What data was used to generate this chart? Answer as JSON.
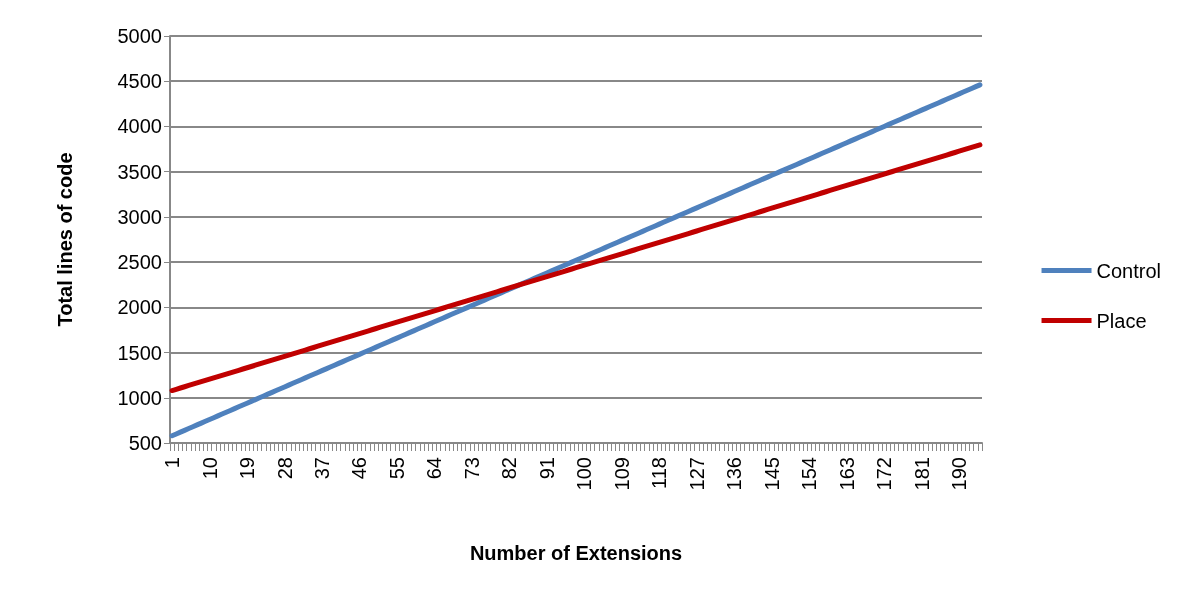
{
  "chart_data": {
    "type": "line",
    "xlabel": "Number of Extensions",
    "ylabel": "Total lines of code",
    "categories": [
      "1",
      null,
      null,
      null,
      null,
      null,
      null,
      null,
      null,
      "10",
      null,
      null,
      null,
      null,
      null,
      null,
      null,
      null,
      "19",
      null,
      null,
      null,
      null,
      null,
      null,
      null,
      null,
      "28",
      null,
      null,
      null,
      null,
      null,
      null,
      null,
      null,
      "37",
      null,
      null,
      null,
      null,
      null,
      null,
      null,
      null,
      "46",
      null,
      null,
      null,
      null,
      null,
      null,
      null,
      null,
      "55",
      null,
      null,
      null,
      null,
      null,
      null,
      null,
      null,
      "64",
      null,
      null,
      null,
      null,
      null,
      null,
      null,
      null,
      "73",
      null,
      null,
      null,
      null,
      null,
      null,
      null,
      null,
      "82",
      null,
      null,
      null,
      null,
      null,
      null,
      null,
      null,
      "91",
      null,
      null,
      null,
      null,
      null,
      null,
      null,
      null,
      "100",
      null,
      null,
      null,
      null,
      null,
      null,
      null,
      null,
      "109",
      null,
      null,
      null,
      null,
      null,
      null,
      null,
      null,
      "118",
      null,
      null,
      null,
      null,
      null,
      null,
      null,
      null,
      "127",
      null,
      null,
      null,
      null,
      null,
      null,
      null,
      null,
      "136",
      null,
      null,
      null,
      null,
      null,
      null,
      null,
      null,
      "145",
      null,
      null,
      null,
      null,
      null,
      null,
      null,
      null,
      "154",
      null,
      null,
      null,
      null,
      null,
      null,
      null,
      null,
      "163",
      null,
      null,
      null,
      null,
      null,
      null,
      null,
      null,
      "172",
      null,
      null,
      null,
      null,
      null,
      null,
      null,
      null,
      "181",
      null,
      null,
      null,
      null,
      null,
      null,
      null,
      null,
      "190",
      null,
      null,
      null,
      null,
      null
    ],
    "series": [
      {
        "name": "Control",
        "color": "#4f81bd",
        "values": [
          580,
          600,
          620,
          640,
          660,
          680,
          700,
          720,
          740,
          760,
          780,
          800,
          820,
          840,
          860,
          880,
          900,
          920,
          940,
          960,
          980,
          1000,
          1020,
          1040,
          1060,
          1080,
          1100,
          1120,
          1140,
          1160,
          1180,
          1200,
          1220,
          1240,
          1260,
          1280,
          1300,
          1320,
          1340,
          1360,
          1380,
          1400,
          1420,
          1440,
          1460,
          1480,
          1500,
          1520,
          1540,
          1560,
          1580,
          1600,
          1620,
          1640,
          1660,
          1680,
          1700,
          1720,
          1740,
          1760,
          1780,
          1800,
          1820,
          1840,
          1860,
          1880,
          1900,
          1920,
          1940,
          1960,
          1980,
          2000,
          2020,
          2040,
          2060,
          2080,
          2100,
          2120,
          2140,
          2160,
          2180,
          2200,
          2220,
          2240,
          2260,
          2280,
          2300,
          2320,
          2340,
          2360,
          2380,
          2400,
          2420,
          2440,
          2460,
          2480,
          2500,
          2520,
          2540,
          2560,
          2580,
          2600,
          2620,
          2640,
          2660,
          2680,
          2700,
          2720,
          2740,
          2760,
          2780,
          2800,
          2820,
          2840,
          2860,
          2880,
          2900,
          2920,
          2940,
          2960,
          2980,
          3000,
          3020,
          3040,
          3060,
          3080,
          3100,
          3120,
          3140,
          3160,
          3180,
          3200,
          3220,
          3240,
          3260,
          3280,
          3300,
          3320,
          3340,
          3360,
          3380,
          3400,
          3420,
          3440,
          3460,
          3480,
          3500,
          3520,
          3540,
          3560,
          3580,
          3600,
          3620,
          3640,
          3660,
          3680,
          3700,
          3720,
          3740,
          3760,
          3780,
          3800,
          3820,
          3840,
          3860,
          3880,
          3900,
          3920,
          3940,
          3960,
          3980,
          4000,
          4020,
          4040,
          4060,
          4080,
          4100,
          4120,
          4140,
          4160,
          4180,
          4200,
          4220,
          4240,
          4260,
          4280,
          4300,
          4320,
          4340,
          4360,
          4380,
          4400,
          4420,
          4440,
          4460
        ]
      },
      {
        "name": "Place",
        "color": "#c00000",
        "values": [
          1080,
          1094,
          1108,
          1122,
          1136,
          1150,
          1164,
          1178,
          1192,
          1206,
          1220,
          1234,
          1248,
          1262,
          1276,
          1290,
          1304,
          1318,
          1332,
          1346,
          1360,
          1374,
          1388,
          1402,
          1416,
          1430,
          1444,
          1458,
          1472,
          1486,
          1500,
          1514,
          1528,
          1542,
          1556,
          1570,
          1584,
          1598,
          1612,
          1626,
          1640,
          1654,
          1668,
          1682,
          1696,
          1710,
          1724,
          1738,
          1752,
          1766,
          1780,
          1794,
          1808,
          1822,
          1836,
          1850,
          1864,
          1878,
          1892,
          1906,
          1920,
          1934,
          1948,
          1962,
          1976,
          1990,
          2004,
          2018,
          2032,
          2046,
          2060,
          2074,
          2088,
          2102,
          2116,
          2130,
          2144,
          2158,
          2172,
          2186,
          2200,
          2214,
          2228,
          2242,
          2256,
          2270,
          2284,
          2298,
          2312,
          2326,
          2340,
          2354,
          2368,
          2382,
          2396,
          2410,
          2424,
          2438,
          2452,
          2466,
          2480,
          2494,
          2508,
          2522,
          2536,
          2550,
          2564,
          2578,
          2592,
          2606,
          2620,
          2634,
          2648,
          2662,
          2676,
          2690,
          2704,
          2718,
          2732,
          2746,
          2760,
          2774,
          2788,
          2802,
          2816,
          2830,
          2844,
          2858,
          2872,
          2886,
          2900,
          2914,
          2928,
          2942,
          2956,
          2970,
          2984,
          2998,
          3012,
          3026,
          3040,
          3054,
          3068,
          3082,
          3096,
          3110,
          3124,
          3138,
          3152,
          3166,
          3180,
          3194,
          3208,
          3222,
          3236,
          3250,
          3264,
          3278,
          3292,
          3306,
          3320,
          3334,
          3348,
          3362,
          3376,
          3390,
          3404,
          3418,
          3432,
          3446,
          3460,
          3474,
          3488,
          3502,
          3516,
          3530,
          3544,
          3558,
          3572,
          3586,
          3600,
          3614,
          3628,
          3642,
          3656,
          3670,
          3684,
          3698,
          3712,
          3726,
          3740,
          3754,
          3768,
          3782,
          3796
        ]
      }
    ],
    "ylim": [
      500,
      5000
    ],
    "yticks": [
      500,
      1000,
      1500,
      2000,
      2500,
      3000,
      3500,
      4000,
      4500,
      5000
    ],
    "grid": "y",
    "legend": "right",
    "marker": "none",
    "line_style": "solid"
  }
}
